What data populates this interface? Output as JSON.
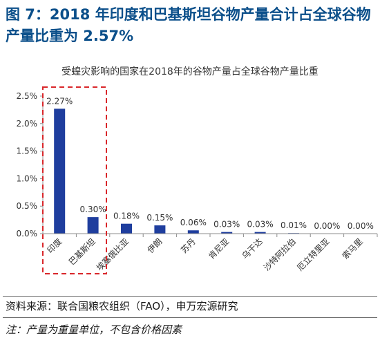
{
  "figure_title": "图 7：2018 年印度和巴基斯坦谷物产量合计占全球谷物产量比重为 2.57%",
  "source_text": "资料来源：联合国粮农组织（FAO），申万宏源研究",
  "note_text": "注：产量为重量单位，不包含价格因素",
  "colors": {
    "bar": "#1f3e9e",
    "title": "#0b4f8a",
    "highlight_box": "#d9262a",
    "axis": "#8c8c8c"
  },
  "chart_data": {
    "type": "bar",
    "title": "受蝗灾影响的国家在2018年的谷物产量占全球谷物产量比重",
    "xlabel": "",
    "ylabel": "",
    "categories": [
      "印度",
      "巴基斯坦",
      "埃塞俄比亚",
      "伊朗",
      "苏丹",
      "肯尼亚",
      "乌干达",
      "沙特阿拉伯",
      "厄立特里亚",
      "索马里"
    ],
    "values": [
      2.27,
      0.3,
      0.18,
      0.15,
      0.06,
      0.03,
      0.03,
      0.01,
      0.0,
      0.0
    ],
    "value_labels": [
      "2.27%",
      "0.30%",
      "0.18%",
      "0.15%",
      "0.06%",
      "0.03%",
      "0.03%",
      "0.01%",
      "0.00%",
      "0.00%"
    ],
    "ylim": [
      0,
      2.5
    ],
    "yticks": [
      0,
      0.5,
      1.0,
      1.5,
      2.0,
      2.5
    ],
    "ytick_labels": [
      "0.0%",
      "0.5%",
      "1.0%",
      "1.5%",
      "2.0%",
      "2.5%"
    ],
    "grid": false,
    "legend": "none",
    "highlight": "dashed box around 印度 and 巴基斯坦"
  }
}
